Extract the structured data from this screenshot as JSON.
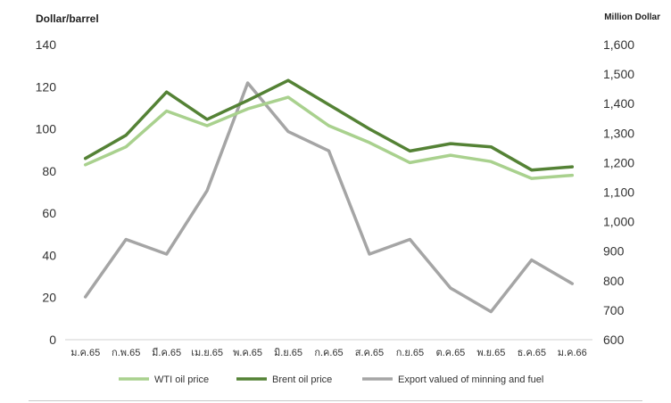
{
  "chart_data": {
    "type": "line",
    "ylabel_left": "Dollar/barrel",
    "ylabel_right": "Million Dollar",
    "categories": [
      "ม.ค.65",
      "ก.พ.65",
      "มี.ค.65",
      "เม.ย.65",
      "พ.ค.65",
      "มิ.ย.65",
      "ก.ค.65",
      "ส.ค.65",
      "ก.ย.65",
      "ต.ค.65",
      "พ.ย.65",
      "ธ.ค.65",
      "ม.ค.66"
    ],
    "ylim_left": [
      0,
      140
    ],
    "yticks_left": [
      "0",
      "20",
      "40",
      "60",
      "80",
      "100",
      "120",
      "140"
    ],
    "ylim_right": [
      600,
      1600
    ],
    "yticks_right": [
      "600",
      "700",
      "800",
      "900",
      "1,000",
      "1,100",
      "1,200",
      "1,300",
      "1,400",
      "1,500",
      "1,600"
    ],
    "grid": false,
    "legend": "bottom",
    "series": [
      {
        "name": "WTI oil price",
        "axis": "left",
        "color": "#a9d18e",
        "values": [
          83,
          91.5,
          108.5,
          101.5,
          109.5,
          115,
          101.5,
          93.5,
          84,
          87.5,
          84.5,
          76.5,
          78
        ]
      },
      {
        "name": "Brent oil price",
        "axis": "left",
        "color": "#548235",
        "values": [
          86,
          97,
          117.5,
          104.5,
          113.5,
          123,
          111.5,
          100,
          89.5,
          93,
          91.5,
          80.5,
          82
        ]
      },
      {
        "name": "Export valued of minning and fuel",
        "axis": "right",
        "color": "#a5a5a5",
        "values": [
          745,
          940,
          890,
          1105,
          1470,
          1305,
          1240,
          890,
          940,
          775,
          695,
          870,
          790
        ]
      }
    ]
  }
}
